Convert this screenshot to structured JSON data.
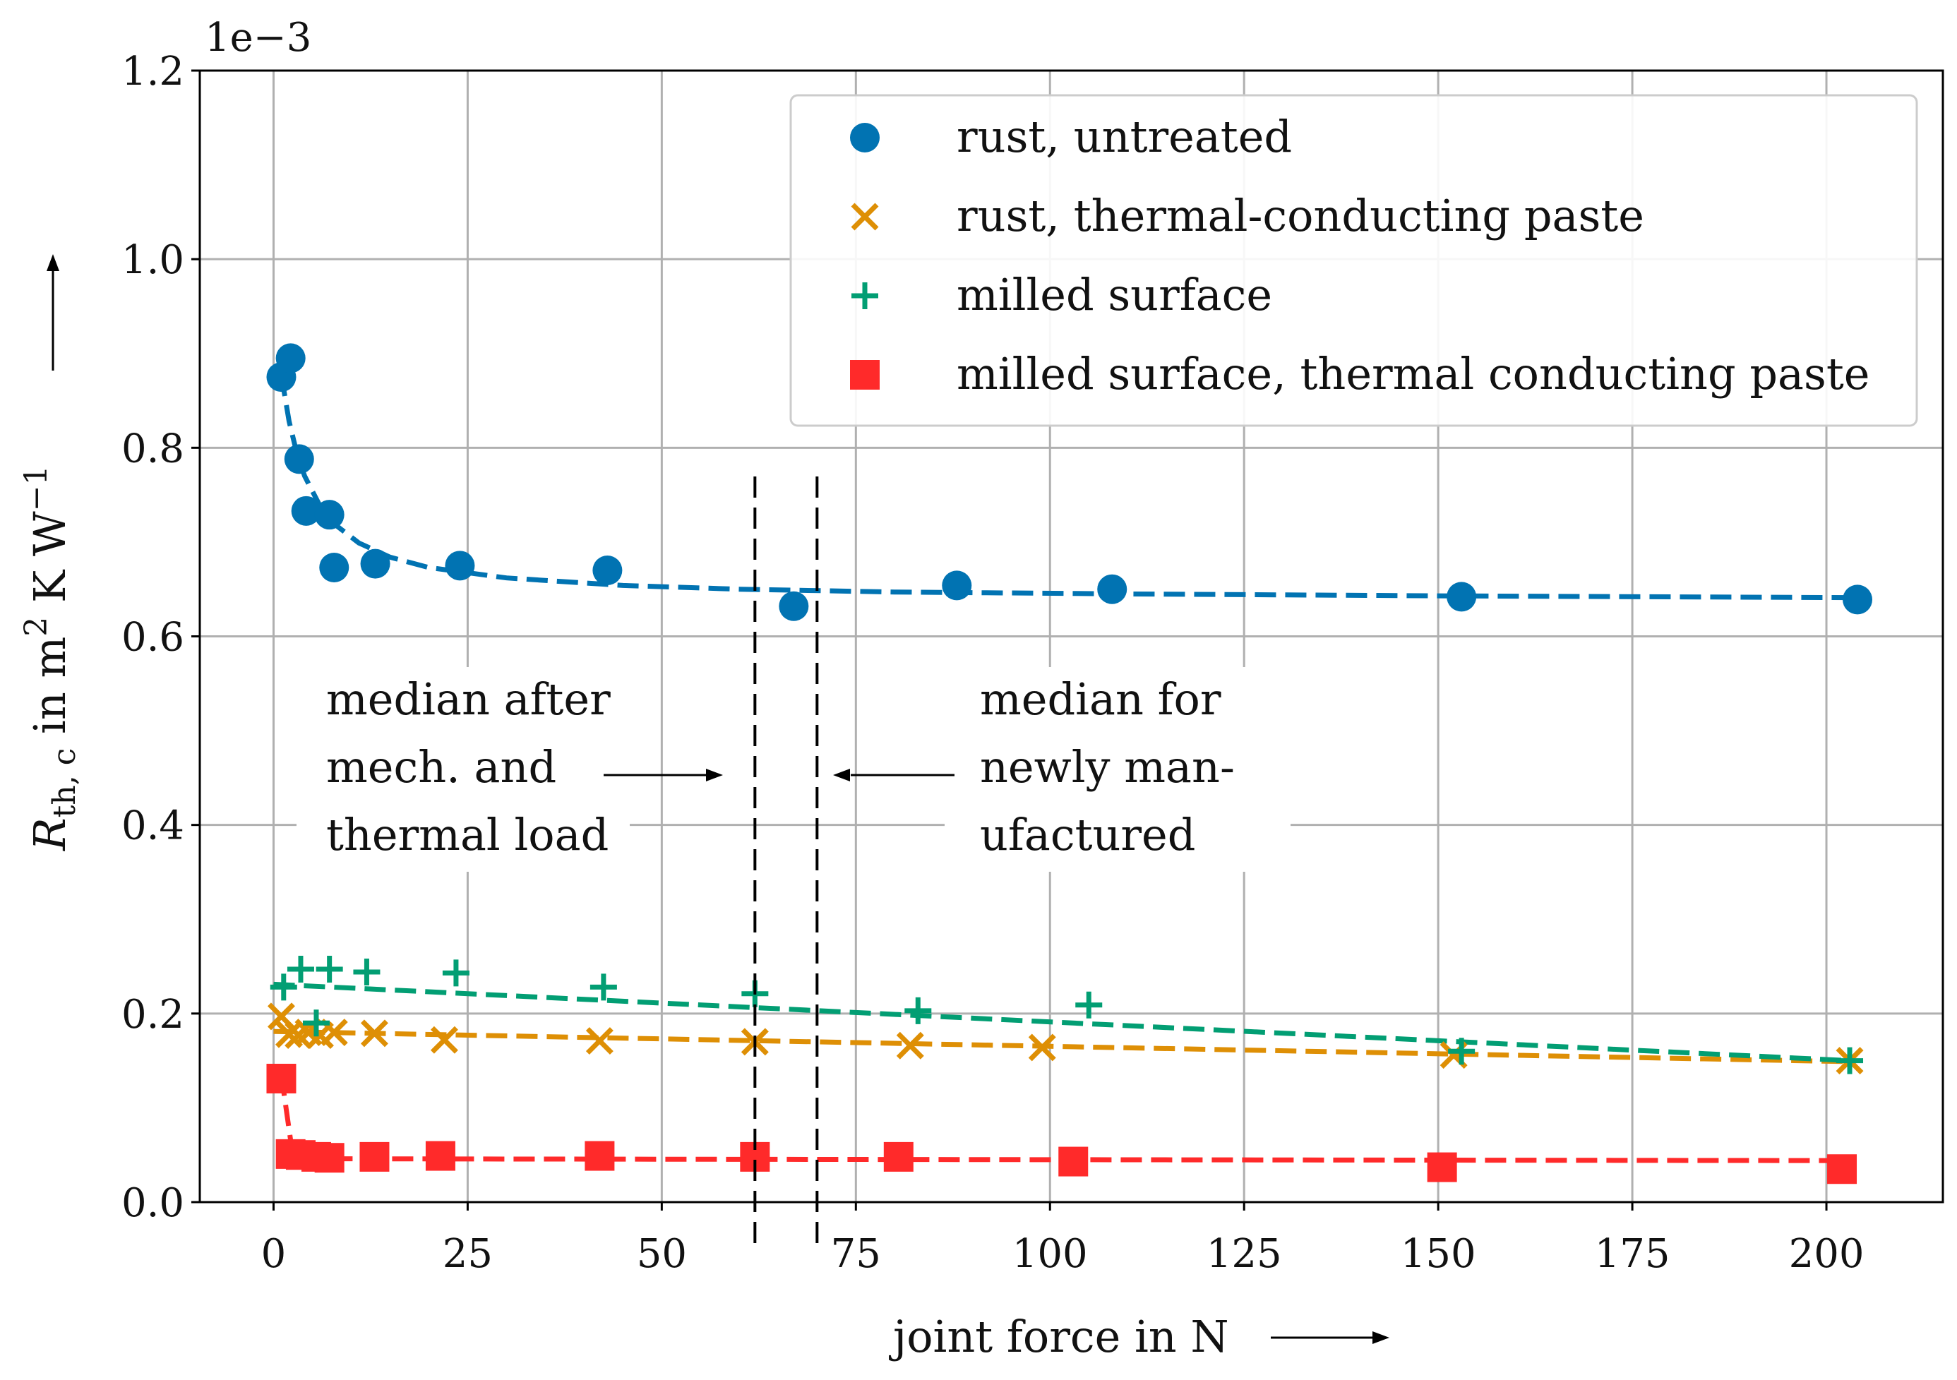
{
  "chart_data": {
    "type": "scatter",
    "title": "",
    "xlabel": "joint force in N",
    "ylabel_html": "R<sub>th, c</sub> in m<sup>2</sup> K W<sup>−1</sup>",
    "ylabel_parts": {
      "main": "R",
      "sub": "th, c",
      "mid": " in m",
      "sup1": "2",
      "mid2": " K W",
      "sup2": "−1"
    },
    "offset_label": "1e−3",
    "xlim": [
      -9.5,
      215
    ],
    "ylim": [
      0.0,
      1.2
    ],
    "xticks": [
      0,
      25,
      50,
      75,
      100,
      125,
      150,
      175,
      200
    ],
    "yticks": [
      0.0,
      0.2,
      0.4,
      0.6,
      0.8,
      1.0,
      1.2
    ],
    "ytick_labels": [
      "0.0",
      "0.2",
      "0.4",
      "0.6",
      "0.8",
      "1.0",
      "1.2"
    ],
    "grid": true,
    "legend_position": "top-right",
    "series": [
      {
        "name": "rust, untreated",
        "marker": "circle",
        "color": "#0173b2",
        "points": [
          [
            1.0,
            0.875
          ],
          [
            2.2,
            0.895
          ],
          [
            3.3,
            0.788
          ],
          [
            4.2,
            0.733
          ],
          [
            7.2,
            0.729
          ],
          [
            7.8,
            0.673
          ],
          [
            13.1,
            0.677
          ],
          [
            24.0,
            0.675
          ],
          [
            43.0,
            0.67
          ],
          [
            67.0,
            0.632
          ],
          [
            88.0,
            0.654
          ],
          [
            108.0,
            0.65
          ],
          [
            153.0,
            0.642
          ],
          [
            204.0,
            0.639
          ]
        ],
        "fit": [
          [
            1.0,
            0.877
          ],
          [
            2.0,
            0.828
          ],
          [
            3.0,
            0.794
          ],
          [
            4.0,
            0.77
          ],
          [
            6.0,
            0.738
          ],
          [
            8.0,
            0.718
          ],
          [
            11.0,
            0.699
          ],
          [
            15.0,
            0.684
          ],
          [
            20.0,
            0.673
          ],
          [
            30.0,
            0.662
          ],
          [
            45.0,
            0.654
          ],
          [
            60.0,
            0.65
          ],
          [
            80.0,
            0.647
          ],
          [
            110.0,
            0.645
          ],
          [
            150.0,
            0.643
          ],
          [
            204.0,
            0.641
          ]
        ]
      },
      {
        "name": "rust, thermal-conducting paste",
        "marker": "x",
        "color": "#de8f05",
        "points": [
          [
            1.0,
            0.197
          ],
          [
            2.0,
            0.178
          ],
          [
            3.2,
            0.177
          ],
          [
            4.5,
            0.18
          ],
          [
            6.0,
            0.177
          ],
          [
            7.8,
            0.18
          ],
          [
            13.0,
            0.179
          ],
          [
            22.0,
            0.172
          ],
          [
            42.0,
            0.171
          ],
          [
            62.0,
            0.17
          ],
          [
            82.0,
            0.166
          ],
          [
            99.0,
            0.164
          ],
          [
            152.0,
            0.156
          ],
          [
            203.0,
            0.15
          ]
        ],
        "fit": [
          [
            0.0,
            0.181
          ],
          [
            203.0,
            0.149
          ]
        ]
      },
      {
        "name": "milled surface",
        "marker": "plus",
        "color": "#029e73",
        "points": [
          [
            1.3,
            0.228
          ],
          [
            3.5,
            0.247
          ],
          [
            5.5,
            0.19
          ],
          [
            7.2,
            0.247
          ],
          [
            12.0,
            0.244
          ],
          [
            23.5,
            0.243
          ],
          [
            42.5,
            0.228
          ],
          [
            62.0,
            0.221
          ],
          [
            83.0,
            0.203
          ],
          [
            105.0,
            0.209
          ],
          [
            153.0,
            0.16
          ],
          [
            203.0,
            0.15
          ]
        ],
        "fit": [
          [
            0.0,
            0.231
          ],
          [
            203.0,
            0.15
          ]
        ]
      },
      {
        "name": "milled surface, thermal conducting paste",
        "marker": "square",
        "color": "#ff2a2a",
        "points": [
          [
            1.0,
            0.131
          ],
          [
            2.2,
            0.051
          ],
          [
            3.5,
            0.05
          ],
          [
            5.5,
            0.048
          ],
          [
            7.2,
            0.047
          ],
          [
            13.0,
            0.048
          ],
          [
            21.5,
            0.049
          ],
          [
            42.0,
            0.049
          ],
          [
            62.0,
            0.048
          ],
          [
            80.5,
            0.048
          ],
          [
            103.0,
            0.043
          ],
          [
            150.5,
            0.037
          ],
          [
            202.0,
            0.035
          ]
        ],
        "fit": [
          [
            1.0,
            0.135
          ],
          [
            2.5,
            0.048
          ],
          [
            4.0,
            0.046
          ],
          [
            202.0,
            0.044
          ]
        ]
      }
    ],
    "reference_lines": [
      {
        "name": "median-after-load",
        "x": 62,
        "color": "#000000"
      },
      {
        "name": "median-newly-manufactured",
        "x": 70,
        "color": "#000000"
      }
    ],
    "annotations": {
      "left": {
        "lines": [
          "median after",
          "mech. and",
          "thermal load"
        ]
      },
      "right": {
        "lines": [
          "median for",
          "newly man-",
          "ufactured"
        ]
      }
    }
  }
}
